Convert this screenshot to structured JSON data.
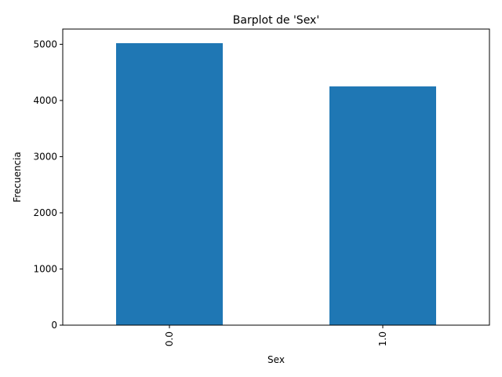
{
  "chart_data": {
    "type": "bar",
    "title": "Barplot de 'Sex'",
    "xlabel": "Sex",
    "ylabel": "Frecuencia",
    "categories": [
      "0.0",
      "1.0"
    ],
    "values": [
      5020,
      4250
    ],
    "ylim": [
      0,
      5271
    ],
    "yticks": [
      0,
      1000,
      2000,
      3000,
      4000,
      5000
    ],
    "grid": false,
    "bar_color": "#1f77b4",
    "xtick_rotation": 90
  }
}
